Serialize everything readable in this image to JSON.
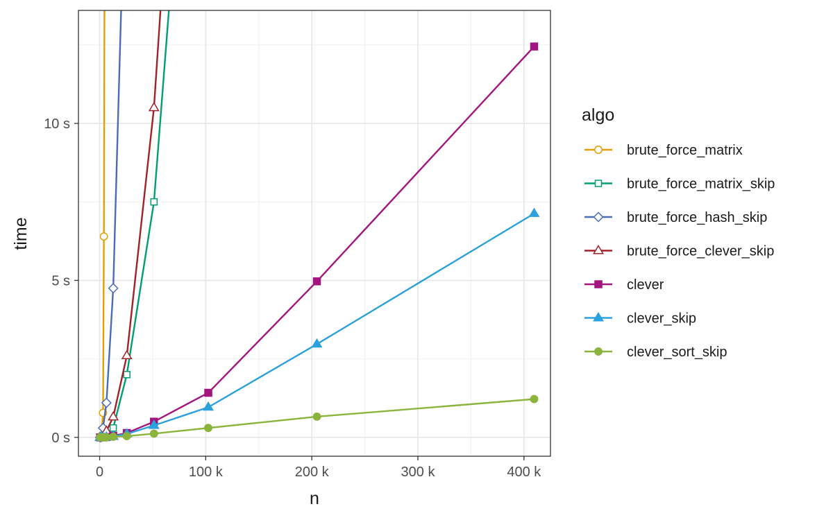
{
  "chart_data": {
    "type": "line",
    "title": "",
    "xlabel": "n",
    "ylabel": "time",
    "xlim": [
      -20000,
      425000
    ],
    "ylim": [
      -0.6,
      13.6
    ],
    "x_ticks": [
      {
        "value": 0,
        "label": "0"
      },
      {
        "value": 100000,
        "label": "100 k"
      },
      {
        "value": 200000,
        "label": "200 k"
      },
      {
        "value": 300000,
        "label": "300 k"
      },
      {
        "value": 400000,
        "label": "400 k"
      }
    ],
    "y_ticks": [
      {
        "value": 0,
        "label": "0 s"
      },
      {
        "value": 5,
        "label": "5 s"
      },
      {
        "value": 10,
        "label": "10 s"
      }
    ],
    "grid": true,
    "legend": {
      "title": "algo",
      "position": "right"
    },
    "series": [
      {
        "name": "brute_force_matrix",
        "color": "#E69F00",
        "marker": "circle-open",
        "points": [
          [
            400,
            0.0
          ],
          [
            800,
            0.01
          ],
          [
            1600,
            0.05
          ],
          [
            3200,
            0.78
          ],
          [
            4000,
            6.4
          ],
          [
            5000,
            20
          ]
        ]
      },
      {
        "name": "brute_force_matrix_skip",
        "color": "#009E73",
        "marker": "square-open",
        "points": [
          [
            400,
            0.0
          ],
          [
            1600,
            0.0
          ],
          [
            3200,
            0.01
          ],
          [
            6400,
            0.05
          ],
          [
            12800,
            0.3
          ],
          [
            25600,
            2.0
          ],
          [
            51200,
            7.5
          ],
          [
            80000,
            20
          ]
        ]
      },
      {
        "name": "brute_force_hash_skip",
        "color": "#4A6BB5",
        "marker": "diamond-open",
        "points": [
          [
            400,
            0.0
          ],
          [
            1600,
            0.01
          ],
          [
            3200,
            0.3
          ],
          [
            6400,
            1.1
          ],
          [
            12800,
            4.75
          ],
          [
            25600,
            20
          ]
        ]
      },
      {
        "name": "brute_force_clever_skip",
        "color": "#A12226",
        "marker": "triangle-open",
        "points": [
          [
            400,
            0.0
          ],
          [
            1600,
            0.0
          ],
          [
            3200,
            0.01
          ],
          [
            6400,
            0.2
          ],
          [
            12800,
            0.65
          ],
          [
            25600,
            2.6
          ],
          [
            51200,
            10.5
          ],
          [
            70000,
            20
          ]
        ]
      },
      {
        "name": "clever",
        "color": "#A3157E",
        "marker": "square-filled",
        "points": [
          [
            400,
            0.0
          ],
          [
            1600,
            0.0
          ],
          [
            3200,
            0.0
          ],
          [
            6400,
            0.01
          ],
          [
            12800,
            0.05
          ],
          [
            25600,
            0.14
          ],
          [
            51200,
            0.5
          ],
          [
            102400,
            1.42
          ],
          [
            204800,
            4.97
          ],
          [
            409600,
            12.45
          ]
        ]
      },
      {
        "name": "clever_skip",
        "color": "#2AA1DC",
        "marker": "triangle-filled",
        "points": [
          [
            400,
            0.0
          ],
          [
            1600,
            0.0
          ],
          [
            3200,
            0.0
          ],
          [
            6400,
            0.01
          ],
          [
            12800,
            0.03
          ],
          [
            25600,
            0.11
          ],
          [
            51200,
            0.38
          ],
          [
            102400,
            0.96
          ],
          [
            204800,
            2.97
          ],
          [
            409600,
            7.13
          ]
        ]
      },
      {
        "name": "clever_sort_skip",
        "color": "#8AB43C",
        "marker": "circle-filled",
        "points": [
          [
            400,
            0.0
          ],
          [
            1600,
            0.0
          ],
          [
            3200,
            0.0
          ],
          [
            6400,
            0.0
          ],
          [
            12800,
            0.02
          ],
          [
            25600,
            0.04
          ],
          [
            51200,
            0.12
          ],
          [
            102400,
            0.3
          ],
          [
            204800,
            0.66
          ],
          [
            409600,
            1.22
          ]
        ]
      }
    ]
  }
}
